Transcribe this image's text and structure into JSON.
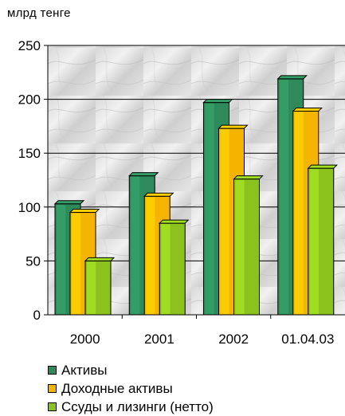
{
  "chart_data": {
    "type": "bar",
    "unit_label": "млрд тенге",
    "categories": [
      "2000",
      "2001",
      "2002",
      "01.04.03"
    ],
    "series": [
      {
        "name": "Активы",
        "values": [
          103,
          129,
          197,
          219
        ],
        "color": "#2e8a5a"
      },
      {
        "name": "Доходные активы",
        "values": [
          95,
          110,
          173,
          189
        ],
        "color": "#f5b400"
      },
      {
        "name": "Ссуды и лизинги (нетто)",
        "values": [
          50,
          85,
          126,
          136
        ],
        "color": "#8cc21e"
      }
    ],
    "ylim": [
      0,
      250
    ],
    "yticks": [
      "0",
      "50",
      "100",
      "150",
      "200",
      "250"
    ],
    "grid": true,
    "legend_position": "bottom"
  }
}
